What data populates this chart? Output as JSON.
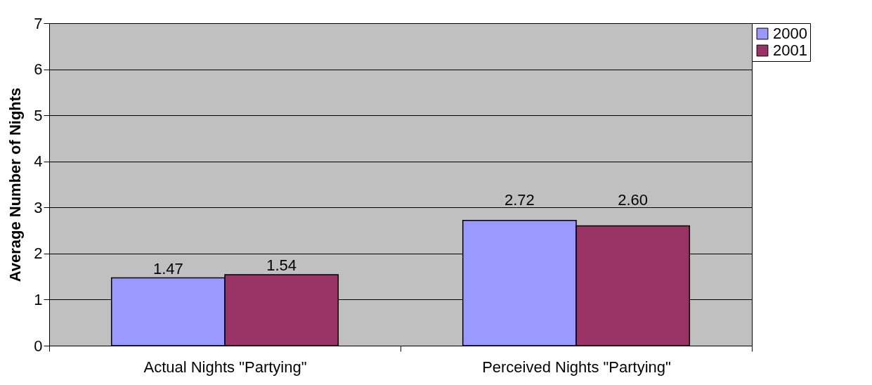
{
  "chart_data": {
    "type": "bar",
    "ylabel": "Average Number of Nights",
    "categories": [
      "Actual Nights \"Partying\"",
      "Perceived Nights \"Partying\""
    ],
    "series": [
      {
        "name": "2000",
        "color": "#9999ff",
        "values": [
          1.47,
          2.72
        ],
        "value_labels": [
          "1.47",
          "2.72"
        ]
      },
      {
        "name": "2001",
        "color": "#993366",
        "values": [
          1.54,
          2.6
        ],
        "value_labels": [
          "1.54",
          "2.60"
        ]
      }
    ],
    "ylim": [
      0,
      7
    ],
    "yticks": [
      0,
      1,
      2,
      3,
      4,
      5,
      6,
      7
    ],
    "grid": "y",
    "legend": "right"
  }
}
